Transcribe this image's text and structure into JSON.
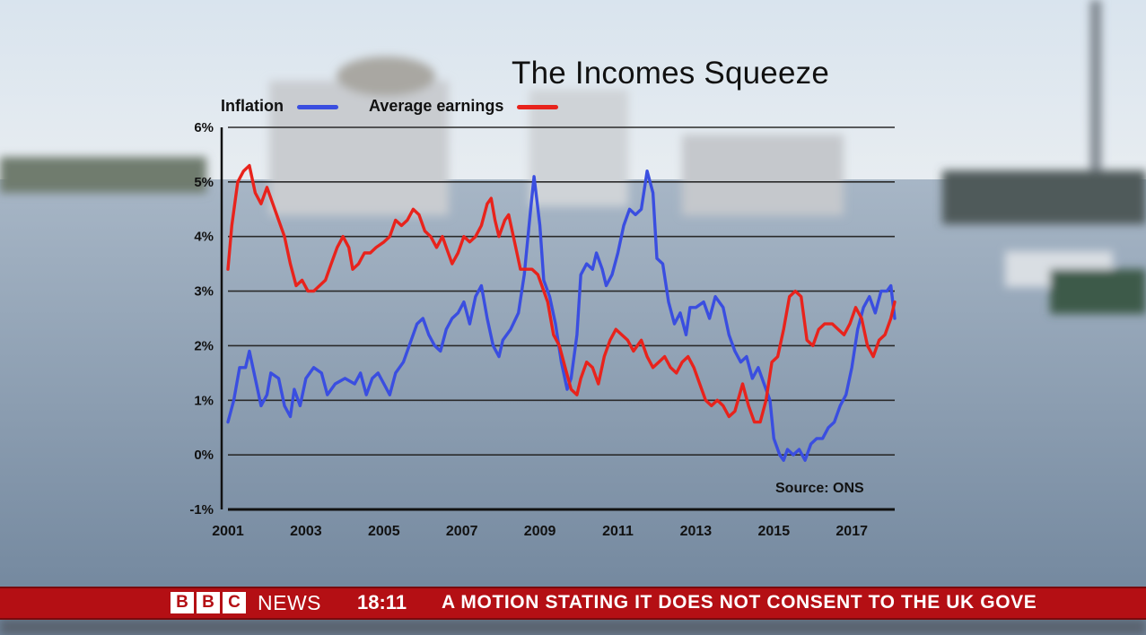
{
  "chart_data": {
    "type": "line",
    "title": "The Incomes Squeeze",
    "source": "Source: ONS",
    "xlim": [
      2001,
      2018.1
    ],
    "ylim": [
      -1,
      6
    ],
    "y_ticks": [
      {
        "value": 6,
        "label": "6%"
      },
      {
        "value": 5,
        "label": "5%"
      },
      {
        "value": 4,
        "label": "4%"
      },
      {
        "value": 3,
        "label": "3%"
      },
      {
        "value": 2,
        "label": "2%"
      },
      {
        "value": 1,
        "label": "1%"
      },
      {
        "value": 0,
        "label": "0%"
      },
      {
        "value": -1,
        "label": "-1%"
      }
    ],
    "x_ticks": [
      {
        "value": 2001,
        "label": "2001"
      },
      {
        "value": 2003,
        "label": "2003"
      },
      {
        "value": 2005,
        "label": "2005"
      },
      {
        "value": 2007,
        "label": "2007"
      },
      {
        "value": 2009,
        "label": "2009"
      },
      {
        "value": 2011,
        "label": "2011"
      },
      {
        "value": 2013,
        "label": "2013"
      },
      {
        "value": 2015,
        "label": "2015"
      },
      {
        "value": 2017,
        "label": "2017"
      }
    ],
    "grid": true,
    "legend_position": "top-left",
    "series": [
      {
        "name": "Inflation",
        "color": "#3a4ee0",
        "points": [
          [
            2001.0,
            0.6
          ],
          [
            2001.15,
            1.0
          ],
          [
            2001.3,
            1.6
          ],
          [
            2001.45,
            1.6
          ],
          [
            2001.55,
            1.9
          ],
          [
            2001.7,
            1.4
          ],
          [
            2001.85,
            0.9
          ],
          [
            2002.0,
            1.1
          ],
          [
            2002.1,
            1.5
          ],
          [
            2002.3,
            1.4
          ],
          [
            2002.45,
            0.9
          ],
          [
            2002.6,
            0.7
          ],
          [
            2002.7,
            1.2
          ],
          [
            2002.85,
            0.9
          ],
          [
            2003.0,
            1.4
          ],
          [
            2003.2,
            1.6
          ],
          [
            2003.4,
            1.5
          ],
          [
            2003.55,
            1.1
          ],
          [
            2003.75,
            1.3
          ],
          [
            2004.0,
            1.4
          ],
          [
            2004.25,
            1.3
          ],
          [
            2004.4,
            1.5
          ],
          [
            2004.55,
            1.1
          ],
          [
            2004.7,
            1.4
          ],
          [
            2004.85,
            1.5
          ],
          [
            2005.0,
            1.3
          ],
          [
            2005.15,
            1.1
          ],
          [
            2005.3,
            1.5
          ],
          [
            2005.5,
            1.7
          ],
          [
            2005.7,
            2.1
          ],
          [
            2005.85,
            2.4
          ],
          [
            2006.0,
            2.5
          ],
          [
            2006.15,
            2.2
          ],
          [
            2006.3,
            2.0
          ],
          [
            2006.45,
            1.9
          ],
          [
            2006.6,
            2.3
          ],
          [
            2006.75,
            2.5
          ],
          [
            2006.9,
            2.6
          ],
          [
            2007.05,
            2.8
          ],
          [
            2007.2,
            2.4
          ],
          [
            2007.35,
            2.9
          ],
          [
            2007.5,
            3.1
          ],
          [
            2007.65,
            2.5
          ],
          [
            2007.8,
            2.0
          ],
          [
            2007.95,
            1.8
          ],
          [
            2008.05,
            2.1
          ],
          [
            2008.25,
            2.3
          ],
          [
            2008.45,
            2.6
          ],
          [
            2008.6,
            3.3
          ],
          [
            2008.75,
            4.4
          ],
          [
            2008.85,
            5.1
          ],
          [
            2009.0,
            4.2
          ],
          [
            2009.1,
            3.2
          ],
          [
            2009.25,
            2.9
          ],
          [
            2009.4,
            2.4
          ],
          [
            2009.55,
            1.7
          ],
          [
            2009.7,
            1.2
          ],
          [
            2009.8,
            1.4
          ],
          [
            2009.95,
            2.2
          ],
          [
            2010.05,
            3.3
          ],
          [
            2010.2,
            3.5
          ],
          [
            2010.35,
            3.4
          ],
          [
            2010.45,
            3.7
          ],
          [
            2010.6,
            3.4
          ],
          [
            2010.7,
            3.1
          ],
          [
            2010.85,
            3.3
          ],
          [
            2011.0,
            3.7
          ],
          [
            2011.15,
            4.2
          ],
          [
            2011.3,
            4.5
          ],
          [
            2011.45,
            4.4
          ],
          [
            2011.6,
            4.5
          ],
          [
            2011.75,
            5.2
          ],
          [
            2011.9,
            4.8
          ],
          [
            2012.0,
            3.6
          ],
          [
            2012.15,
            3.5
          ],
          [
            2012.3,
            2.8
          ],
          [
            2012.45,
            2.4
          ],
          [
            2012.6,
            2.6
          ],
          [
            2012.75,
            2.2
          ],
          [
            2012.85,
            2.7
          ],
          [
            2013.0,
            2.7
          ],
          [
            2013.2,
            2.8
          ],
          [
            2013.35,
            2.5
          ],
          [
            2013.5,
            2.9
          ],
          [
            2013.7,
            2.7
          ],
          [
            2013.85,
            2.2
          ],
          [
            2014.0,
            1.9
          ],
          [
            2014.15,
            1.7
          ],
          [
            2014.3,
            1.8
          ],
          [
            2014.45,
            1.4
          ],
          [
            2014.6,
            1.6
          ],
          [
            2014.75,
            1.3
          ],
          [
            2014.9,
            1.0
          ],
          [
            2015.0,
            0.3
          ],
          [
            2015.15,
            0.0
          ],
          [
            2015.25,
            -0.1
          ],
          [
            2015.35,
            0.1
          ],
          [
            2015.5,
            0.0
          ],
          [
            2015.65,
            0.1
          ],
          [
            2015.8,
            -0.1
          ],
          [
            2015.95,
            0.2
          ],
          [
            2016.1,
            0.3
          ],
          [
            2016.25,
            0.3
          ],
          [
            2016.4,
            0.5
          ],
          [
            2016.55,
            0.6
          ],
          [
            2016.7,
            0.9
          ],
          [
            2016.85,
            1.1
          ],
          [
            2017.0,
            1.6
          ],
          [
            2017.15,
            2.3
          ],
          [
            2017.3,
            2.7
          ],
          [
            2017.45,
            2.9
          ],
          [
            2017.6,
            2.6
          ],
          [
            2017.75,
            3.0
          ],
          [
            2017.9,
            3.0
          ],
          [
            2018.0,
            3.1
          ],
          [
            2018.1,
            2.5
          ]
        ]
      },
      {
        "name": "Average earnings",
        "color": "#e8231c",
        "points": [
          [
            2001.0,
            3.4
          ],
          [
            2001.1,
            4.2
          ],
          [
            2001.25,
            5.0
          ],
          [
            2001.4,
            5.2
          ],
          [
            2001.55,
            5.3
          ],
          [
            2001.7,
            4.8
          ],
          [
            2001.85,
            4.6
          ],
          [
            2002.0,
            4.9
          ],
          [
            2002.15,
            4.6
          ],
          [
            2002.3,
            4.3
          ],
          [
            2002.45,
            4.0
          ],
          [
            2002.6,
            3.5
          ],
          [
            2002.75,
            3.1
          ],
          [
            2002.9,
            3.2
          ],
          [
            2003.05,
            3.0
          ],
          [
            2003.2,
            3.0
          ],
          [
            2003.35,
            3.1
          ],
          [
            2003.5,
            3.2
          ],
          [
            2003.65,
            3.5
          ],
          [
            2003.8,
            3.8
          ],
          [
            2003.95,
            4.0
          ],
          [
            2004.1,
            3.8
          ],
          [
            2004.2,
            3.4
          ],
          [
            2004.35,
            3.5
          ],
          [
            2004.5,
            3.7
          ],
          [
            2004.65,
            3.7
          ],
          [
            2004.8,
            3.8
          ],
          [
            2005.0,
            3.9
          ],
          [
            2005.15,
            4.0
          ],
          [
            2005.3,
            4.3
          ],
          [
            2005.45,
            4.2
          ],
          [
            2005.6,
            4.3
          ],
          [
            2005.75,
            4.5
          ],
          [
            2005.9,
            4.4
          ],
          [
            2006.05,
            4.1
          ],
          [
            2006.2,
            4.0
          ],
          [
            2006.35,
            3.8
          ],
          [
            2006.5,
            4.0
          ],
          [
            2006.6,
            3.8
          ],
          [
            2006.75,
            3.5
          ],
          [
            2006.9,
            3.7
          ],
          [
            2007.05,
            4.0
          ],
          [
            2007.2,
            3.9
          ],
          [
            2007.35,
            4.0
          ],
          [
            2007.5,
            4.2
          ],
          [
            2007.65,
            4.6
          ],
          [
            2007.75,
            4.7
          ],
          [
            2007.85,
            4.3
          ],
          [
            2007.95,
            4.0
          ],
          [
            2008.1,
            4.3
          ],
          [
            2008.2,
            4.4
          ],
          [
            2008.35,
            3.9
          ],
          [
            2008.5,
            3.4
          ],
          [
            2008.65,
            3.4
          ],
          [
            2008.8,
            3.4
          ],
          [
            2008.95,
            3.3
          ],
          [
            2009.05,
            3.1
          ],
          [
            2009.2,
            2.8
          ],
          [
            2009.35,
            2.2
          ],
          [
            2009.5,
            2.0
          ],
          [
            2009.65,
            1.6
          ],
          [
            2009.8,
            1.2
          ],
          [
            2009.95,
            1.1
          ],
          [
            2010.05,
            1.4
          ],
          [
            2010.2,
            1.7
          ],
          [
            2010.35,
            1.6
          ],
          [
            2010.5,
            1.3
          ],
          [
            2010.65,
            1.8
          ],
          [
            2010.8,
            2.1
          ],
          [
            2010.95,
            2.3
          ],
          [
            2011.1,
            2.2
          ],
          [
            2011.25,
            2.1
          ],
          [
            2011.4,
            1.9
          ],
          [
            2011.6,
            2.1
          ],
          [
            2011.75,
            1.8
          ],
          [
            2011.9,
            1.6
          ],
          [
            2012.05,
            1.7
          ],
          [
            2012.2,
            1.8
          ],
          [
            2012.35,
            1.6
          ],
          [
            2012.5,
            1.5
          ],
          [
            2012.65,
            1.7
          ],
          [
            2012.8,
            1.8
          ],
          [
            2012.95,
            1.6
          ],
          [
            2013.1,
            1.3
          ],
          [
            2013.25,
            1.0
          ],
          [
            2013.4,
            0.9
          ],
          [
            2013.55,
            1.0
          ],
          [
            2013.7,
            0.9
          ],
          [
            2013.85,
            0.7
          ],
          [
            2014.0,
            0.8
          ],
          [
            2014.2,
            1.3
          ],
          [
            2014.35,
            0.9
          ],
          [
            2014.5,
            0.6
          ],
          [
            2014.65,
            0.6
          ],
          [
            2014.8,
            1.0
          ],
          [
            2014.95,
            1.7
          ],
          [
            2015.1,
            1.8
          ],
          [
            2015.25,
            2.3
          ],
          [
            2015.4,
            2.9
          ],
          [
            2015.55,
            3.0
          ],
          [
            2015.7,
            2.9
          ],
          [
            2015.85,
            2.1
          ],
          [
            2016.0,
            2.0
          ],
          [
            2016.15,
            2.3
          ],
          [
            2016.3,
            2.4
          ],
          [
            2016.5,
            2.4
          ],
          [
            2016.65,
            2.3
          ],
          [
            2016.8,
            2.2
          ],
          [
            2016.95,
            2.4
          ],
          [
            2017.1,
            2.7
          ],
          [
            2017.25,
            2.5
          ],
          [
            2017.4,
            2.0
          ],
          [
            2017.55,
            1.8
          ],
          [
            2017.7,
            2.1
          ],
          [
            2017.85,
            2.2
          ],
          [
            2018.0,
            2.5
          ],
          [
            2018.1,
            2.8
          ]
        ]
      }
    ]
  },
  "ticker": {
    "brand_letters": [
      "B",
      "B",
      "C"
    ],
    "news_label": "NEWS",
    "time": "18:11",
    "headline": "A MOTION STATING IT DOES NOT CONSENT TO THE UK GOVE"
  }
}
